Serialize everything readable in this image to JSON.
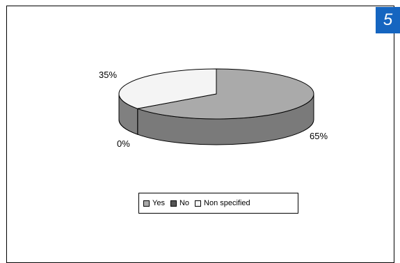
{
  "page_badge": "5",
  "chart_data": {
    "type": "pie",
    "title": "",
    "slices": [
      {
        "label": "Yes",
        "value": 65,
        "value_label": "65%",
        "color": "#aaaaaa"
      },
      {
        "label": "No",
        "value": 0,
        "value_label": "0%",
        "color": "#555555"
      },
      {
        "label": "Non specified",
        "value": 35,
        "value_label": "35%",
        "color": "#f4f4f4"
      }
    ],
    "legend_position": "bottom",
    "style": "3d"
  }
}
